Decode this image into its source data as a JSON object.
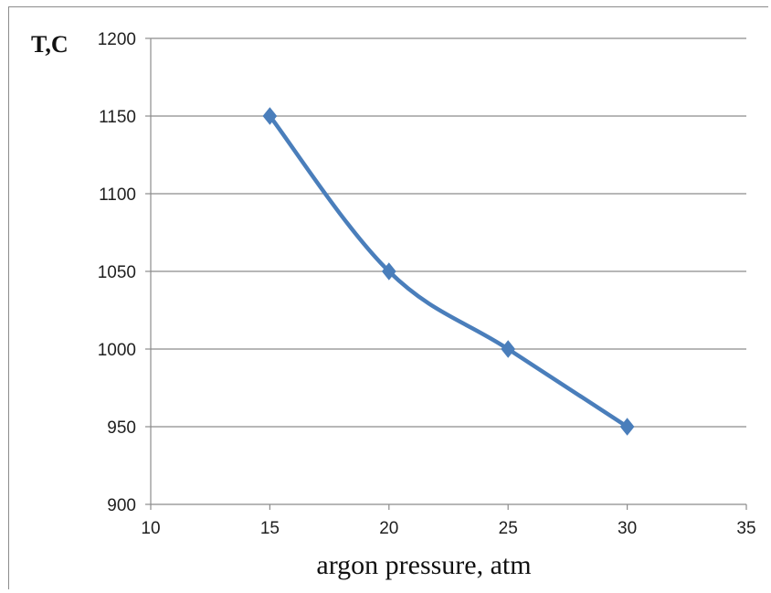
{
  "chart_data": {
    "type": "line",
    "title": "",
    "xlabel": "argon pressure, atm",
    "ylabel": "T,C",
    "xlim": [
      10,
      35
    ],
    "ylim": [
      900,
      1200
    ],
    "xticks": [
      10,
      15,
      20,
      25,
      30,
      35
    ],
    "yticks": [
      900,
      950,
      1000,
      1050,
      1100,
      1150,
      1200
    ],
    "x_tick_labels": [
      "10",
      "15",
      "20",
      "25",
      "30",
      "35"
    ],
    "y_tick_labels": [
      "900",
      "950",
      "1000",
      "1050",
      "1100",
      "1150",
      "1200"
    ],
    "grid": "horizontal",
    "legend": "none",
    "smooth": true,
    "marker": "diamond",
    "series": [
      {
        "x": [
          15,
          20,
          25,
          30
        ],
        "y": [
          1150,
          1050,
          1000,
          950
        ],
        "color": "#4a7ebb"
      }
    ]
  }
}
